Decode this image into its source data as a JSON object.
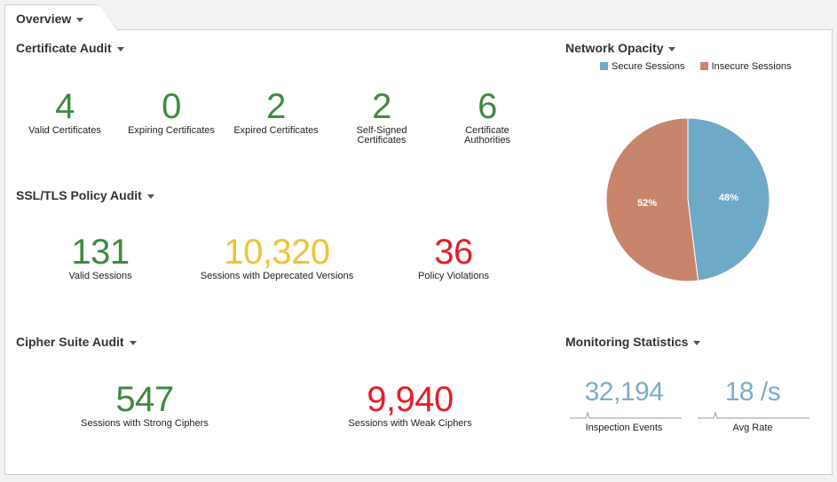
{
  "tab": {
    "label": "Overview"
  },
  "certificate_audit": {
    "title": "Certificate Audit",
    "metrics": [
      {
        "value": "4",
        "label": "Valid Certificates",
        "color": "#3f8a3f"
      },
      {
        "value": "0",
        "label": "Expiring Certificates",
        "color": "#3f8a3f"
      },
      {
        "value": "2",
        "label": "Expired Certificates",
        "color": "#3f8a3f"
      },
      {
        "value": "2",
        "label_line1": "Self-Signed",
        "label_line2": "Certificates",
        "color": "#3f8a3f"
      },
      {
        "value": "6",
        "label_line1": "Certificate",
        "label_line2": "Authorities",
        "color": "#3f8a3f"
      }
    ]
  },
  "ssl_policy_audit": {
    "title": "SSL/TLS Policy Audit",
    "metrics": [
      {
        "value": "131",
        "label": "Valid Sessions",
        "color": "#3f8a3f"
      },
      {
        "value": "10,320",
        "label": "Sessions with Deprecated Versions",
        "color": "#f0c23a"
      },
      {
        "value": "36",
        "label": "Policy Violations",
        "color": "#e2202a"
      }
    ]
  },
  "cipher_suite_audit": {
    "title": "Cipher Suite Audit",
    "metrics": [
      {
        "value": "547",
        "label": "Sessions with Strong Ciphers",
        "color": "#3f8a3f"
      },
      {
        "value": "9,940",
        "label": "Sessions with Weak Ciphers",
        "color": "#e2202a"
      }
    ]
  },
  "network_opacity": {
    "title": "Network Opacity",
    "chart_data": {
      "type": "pie",
      "legend_position": "top",
      "slices": [
        {
          "name": "Secure Sessions",
          "value": 48,
          "label": "48%",
          "color": "#6fa9c8"
        },
        {
          "name": "Insecure Sessions",
          "value": 52,
          "label": "52%",
          "color": "#c8856d"
        }
      ]
    }
  },
  "monitoring_statistics": {
    "title": "Monitoring Statistics",
    "metrics": [
      {
        "value": "32,194",
        "label": "Inspection Events",
        "color": "#7aaec8"
      },
      {
        "value": "18 /s",
        "label": "Avg Rate",
        "color": "#7aaec8"
      }
    ]
  }
}
